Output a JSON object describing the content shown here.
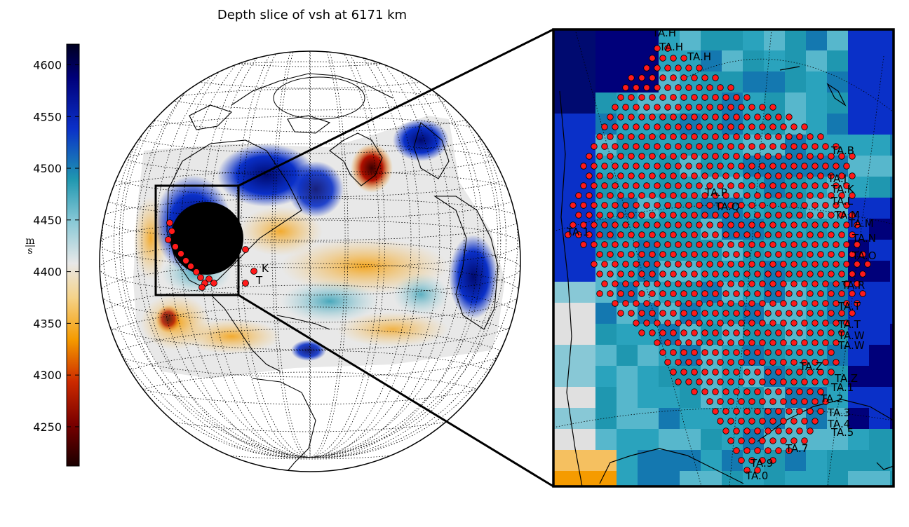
{
  "title": "Depth slice of vsh at 6171 km",
  "colorbar": {
    "ticks": [
      4600,
      4550,
      4500,
      4450,
      4400,
      4350,
      4300,
      4250
    ],
    "range": [
      4212,
      4620
    ],
    "unit_num": "m",
    "unit_den": "s",
    "stops": [
      "#1a0000",
      "#7a0000",
      "#cc2a00",
      "#f59b00",
      "#f5d38a",
      "#e8e8e8",
      "#88c8d6",
      "#1f97b0",
      "#0a30c8",
      "#00007a",
      "#000020"
    ]
  },
  "inset": {
    "labels": [
      "TA.H",
      "TA.H",
      "TA.H",
      "TA.B",
      "TA.J",
      "TA.K",
      "TA.L",
      "TA.M",
      "TA.M",
      "TA.N",
      "TA.O",
      "TA.P",
      "TA.Q",
      "TA.R",
      "TA.T",
      "TA.T",
      "TA.W",
      "TA.W",
      "TA.Z",
      "TA.Z",
      "TA.1",
      "TA.2",
      "TA.3",
      "TA.4",
      "TA.5",
      "TA.7",
      "TA.9",
      "TA.0",
      "TA.1"
    ]
  },
  "globe": {
    "labels": [
      "K",
      "T"
    ]
  },
  "colors": {
    "station_fill": "#ff1a1a",
    "station_stroke": "#000000",
    "frame": "#000000"
  }
}
